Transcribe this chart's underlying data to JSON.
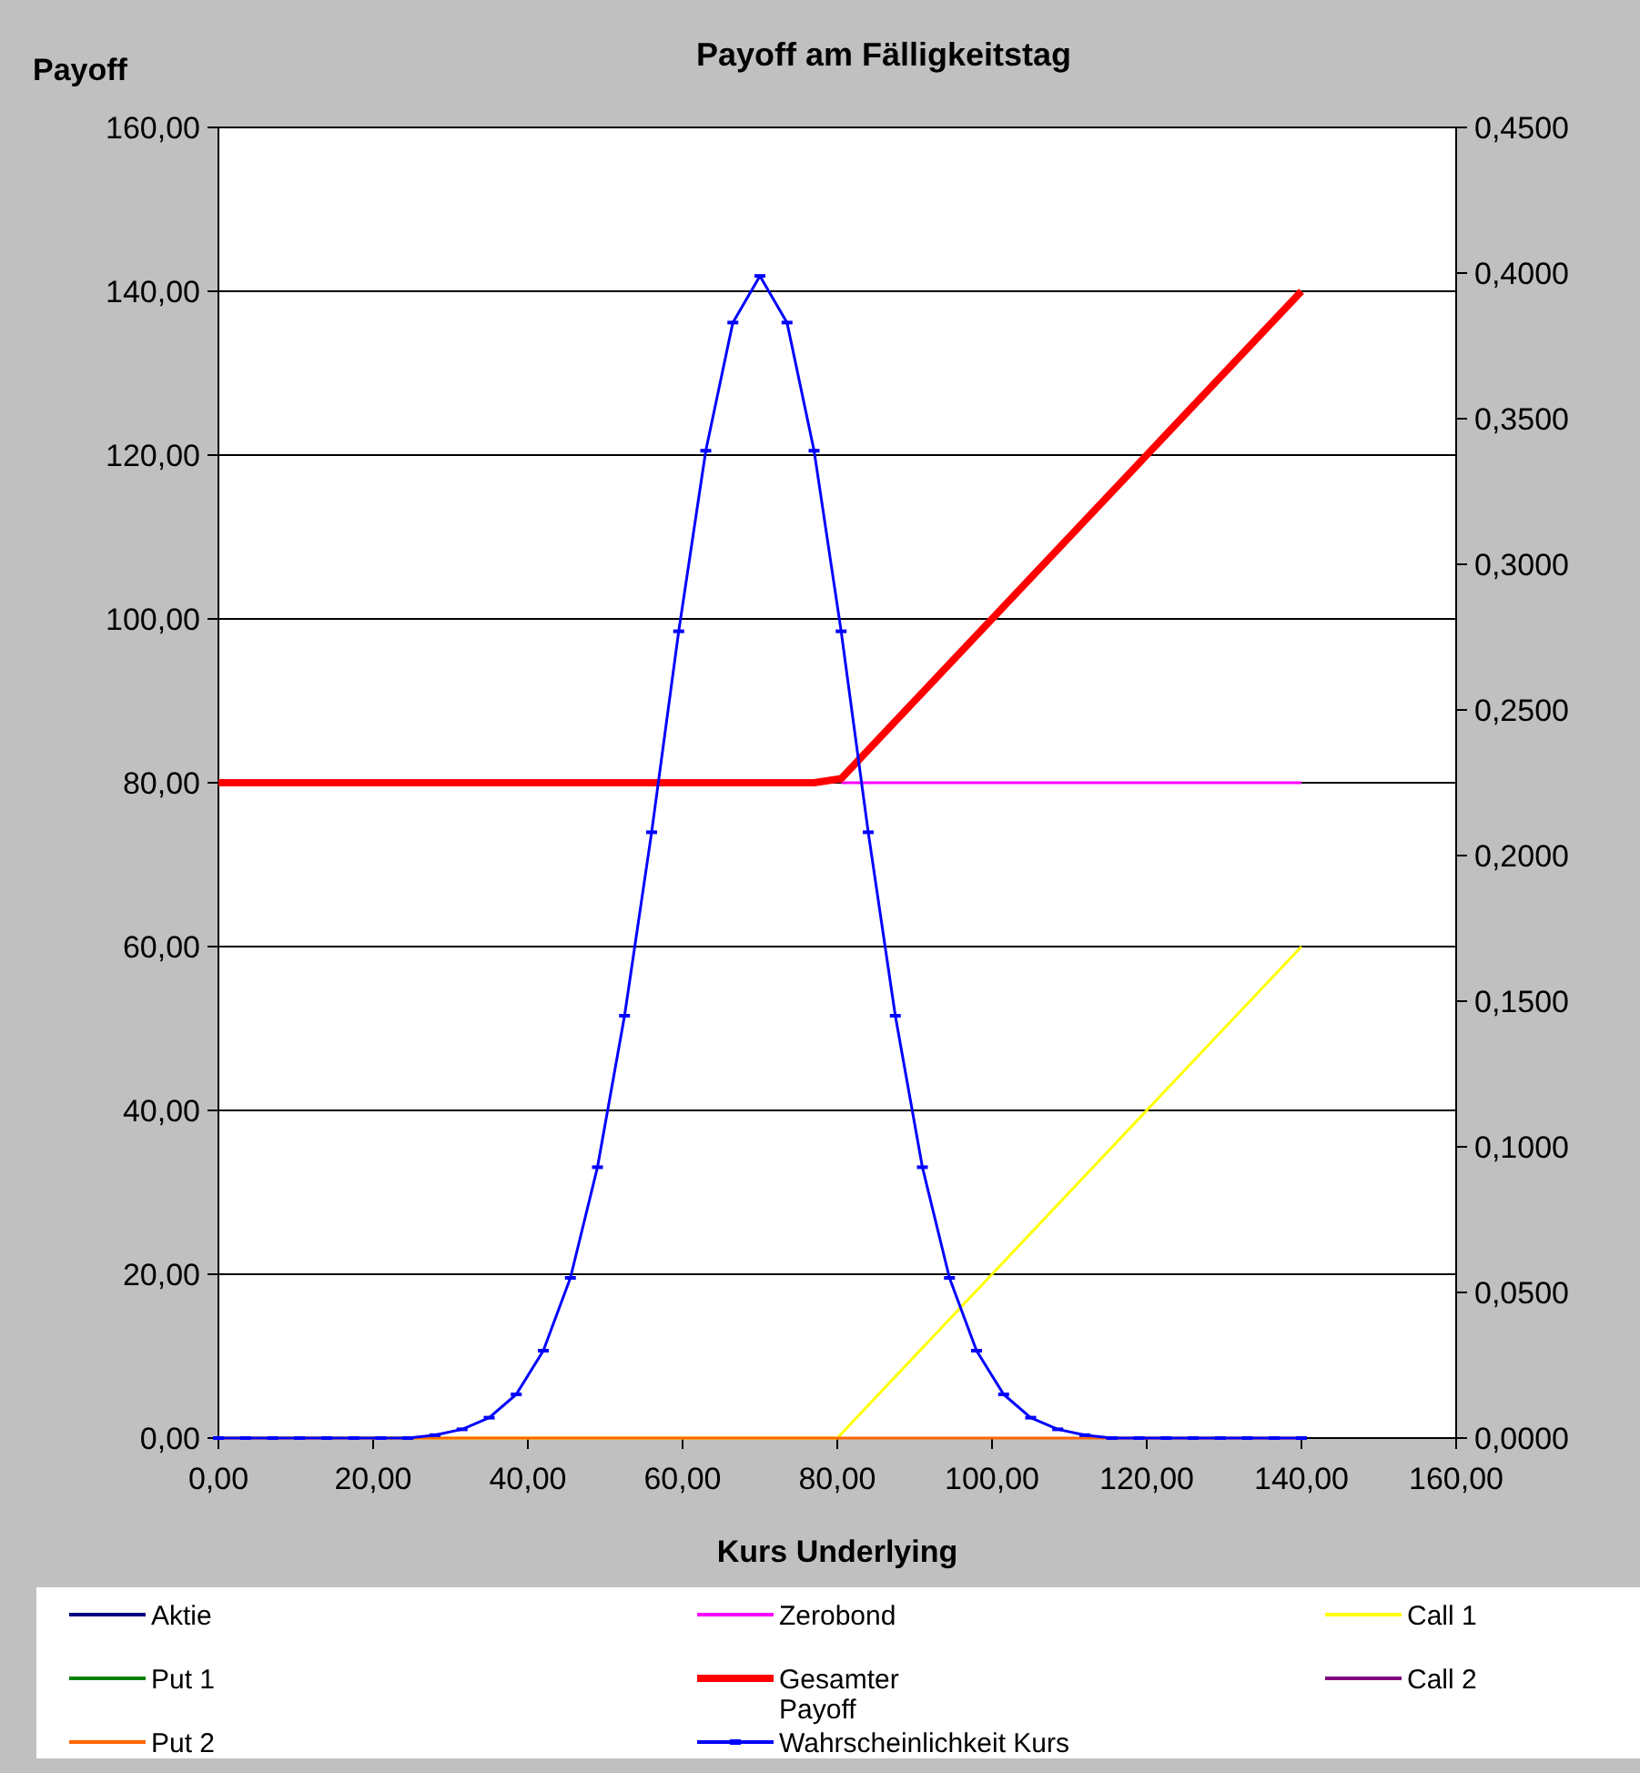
{
  "chart_data": {
    "type": "line",
    "title": "Payoff am Fälligkeitstag",
    "xlabel": "Kurs Underlying",
    "ylabel": "Payoff",
    "xlim": [
      0,
      160
    ],
    "xticks": [
      {
        "value": 0,
        "label": "0,00"
      },
      {
        "value": 20,
        "label": "20,00"
      },
      {
        "value": 40,
        "label": "40,00"
      },
      {
        "value": 60,
        "label": "60,00"
      },
      {
        "value": 80,
        "label": "80,00"
      },
      {
        "value": 100,
        "label": "100,00"
      },
      {
        "value": 120,
        "label": "120,00"
      },
      {
        "value": 140,
        "label": "140,00"
      },
      {
        "value": 160,
        "label": "160,00"
      }
    ],
    "ylim": [
      0,
      160
    ],
    "yticks": [
      {
        "value": 0,
        "label": "0,00"
      },
      {
        "value": 20,
        "label": "20,00"
      },
      {
        "value": 40,
        "label": "40,00"
      },
      {
        "value": 60,
        "label": "60,00"
      },
      {
        "value": 80,
        "label": "80,00"
      },
      {
        "value": 100,
        "label": "100,00"
      },
      {
        "value": 120,
        "label": "120,00"
      },
      {
        "value": 140,
        "label": "140,00"
      },
      {
        "value": 160,
        "label": "160,00"
      }
    ],
    "y2lim": [
      0,
      0.45
    ],
    "y2ticks": [
      {
        "value": 0,
        "label": "0,0000"
      },
      {
        "value": 0.05,
        "label": "0,0500"
      },
      {
        "value": 0.1,
        "label": "0,1000"
      },
      {
        "value": 0.15,
        "label": "0,1500"
      },
      {
        "value": 0.2,
        "label": "0,2000"
      },
      {
        "value": 0.25,
        "label": "0,2500"
      },
      {
        "value": 0.3,
        "label": "0,3000"
      },
      {
        "value": 0.35,
        "label": "0,3500"
      },
      {
        "value": 0.4,
        "label": "0,4000"
      },
      {
        "value": 0.45,
        "label": "0,4500"
      }
    ],
    "grid": "y",
    "legend": "bottom",
    "series": [
      {
        "name": "Aktie",
        "color": "#000080"
      },
      {
        "name": "Zerobond",
        "color": "#ff00ff",
        "x": [
          80.5,
          140
        ],
        "values": [
          80,
          80
        ]
      },
      {
        "name": "Call 1",
        "color": "#ffff00",
        "x": [
          0,
          80,
          140
        ],
        "values": [
          0,
          0,
          60
        ]
      },
      {
        "name": "Put 1",
        "color": "#008000"
      },
      {
        "name": "Gesamter Payoff",
        "color": "#ff0000",
        "x": [
          0,
          77,
          80.5,
          140
        ],
        "values": [
          80,
          80,
          80.5,
          140
        ]
      },
      {
        "name": "Call 2",
        "color": "#800080"
      },
      {
        "name": "Put 2",
        "color": "#ff6600",
        "x": [
          0,
          140
        ],
        "values": [
          0,
          0
        ]
      },
      {
        "name": "Wahrscheinlichkeit Kurs",
        "color": "#0000ff",
        "axis": "y2",
        "marker": "square",
        "x": [
          0,
          3.5,
          7,
          10.5,
          14,
          17.5,
          21,
          24.5,
          28,
          31.5,
          35,
          38.5,
          42,
          45.5,
          49,
          52.5,
          56,
          59.5,
          63,
          66.5,
          70,
          73.5,
          77,
          80.5,
          84,
          87.5,
          91,
          94.5,
          98,
          101.5,
          105,
          108.5,
          112,
          115.5,
          119,
          122.5,
          126,
          129.5,
          133,
          136.5,
          140
        ],
        "values": [
          0,
          0,
          0,
          0,
          0,
          0,
          0,
          0,
          0.001,
          0.003,
          0.007,
          0.015,
          0.03,
          0.055,
          0.093,
          0.145,
          0.208,
          0.277,
          0.339,
          0.383,
          0.399,
          0.383,
          0.339,
          0.277,
          0.208,
          0.145,
          0.093,
          0.055,
          0.03,
          0.015,
          0.007,
          0.003,
          0.001,
          0,
          0,
          0,
          0,
          0,
          0,
          0,
          0
        ]
      }
    ]
  }
}
